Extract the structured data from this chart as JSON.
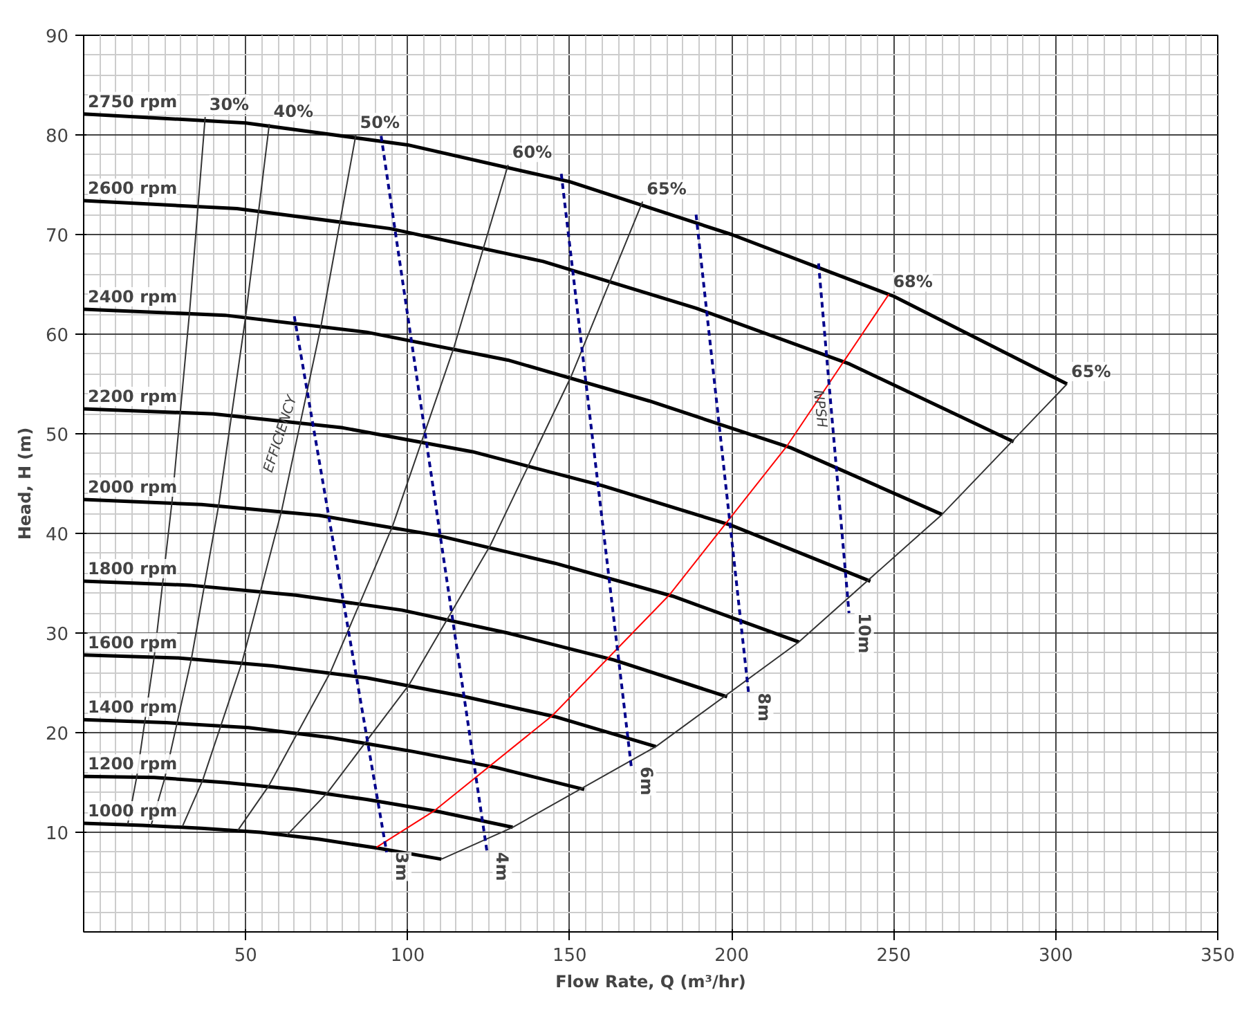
{
  "chart_data": {
    "type": "line",
    "xlabel": "Flow Rate, Q (m³/hr)",
    "ylabel": "Head, H (m)",
    "xlim": [
      0,
      350
    ],
    "ylim": [
      0,
      90
    ],
    "xticks": [
      50,
      100,
      150,
      200,
      250,
      300,
      350
    ],
    "yticks": [
      10,
      20,
      30,
      40,
      50,
      60,
      70,
      80,
      90
    ],
    "grid": true,
    "line_style": "solid",
    "series": [
      {
        "name": "2750 rpm",
        "color": "#000000",
        "x": [
          0,
          50,
          100,
          150,
          200,
          250,
          303.5
        ],
        "values": [
          82.1,
          81.2,
          79.0,
          75.3,
          70.0,
          63.8,
          55.0
        ]
      },
      {
        "name": "2600 rpm",
        "color": "#000000",
        "x": [
          0,
          47.3,
          94.5,
          141.8,
          189.1,
          236.4,
          287.0
        ],
        "values": [
          73.4,
          72.6,
          70.6,
          67.3,
          62.6,
          57.0,
          49.2
        ]
      },
      {
        "name": "2400 rpm",
        "color": "#000000",
        "x": [
          0,
          43.6,
          87.3,
          130.9,
          174.5,
          218.2,
          264.9
        ],
        "values": [
          62.5,
          61.9,
          60.2,
          57.4,
          53.3,
          48.6,
          41.9
        ]
      },
      {
        "name": "2200 rpm",
        "color": "#000000",
        "x": [
          0,
          40,
          80,
          120,
          160,
          200,
          242.8
        ],
        "values": [
          52.5,
          52.0,
          50.6,
          48.2,
          44.8,
          40.8,
          35.2
        ]
      },
      {
        "name": "2000 rpm",
        "color": "#000000",
        "x": [
          0,
          36.4,
          72.7,
          109.1,
          145.5,
          181.8,
          220.7
        ],
        "values": [
          43.4,
          42.9,
          41.8,
          39.8,
          37.0,
          33.7,
          29.1
        ]
      },
      {
        "name": "1800 rpm",
        "color": "#000000",
        "x": [
          0,
          32.7,
          65.5,
          98.2,
          130.9,
          163.6,
          198.6
        ],
        "values": [
          35.2,
          34.8,
          33.8,
          32.3,
          30.0,
          27.3,
          23.6
        ]
      },
      {
        "name": "1600 rpm",
        "color": "#000000",
        "x": [
          0,
          29.1,
          58.2,
          87.3,
          116.4,
          145.5,
          176.6
        ],
        "values": [
          27.8,
          27.5,
          26.7,
          25.5,
          23.7,
          21.6,
          18.6
        ]
      },
      {
        "name": "1400 rpm",
        "color": "#000000",
        "x": [
          0,
          25.5,
          50.9,
          76.4,
          101.8,
          127.3,
          154.5
        ],
        "values": [
          21.3,
          21.0,
          20.5,
          19.5,
          18.1,
          16.5,
          14.3
        ]
      },
      {
        "name": "1200 rpm",
        "color": "#000000",
        "x": [
          0,
          21.8,
          43.6,
          65.5,
          87.3,
          109.1,
          132.4
        ],
        "values": [
          15.6,
          15.5,
          15.0,
          14.3,
          13.3,
          12.1,
          10.5
        ]
      },
      {
        "name": "1000 rpm",
        "color": "#000000",
        "x": [
          0,
          18.2,
          36.4,
          54.5,
          72.7,
          90.9,
          110.4
        ],
        "values": [
          10.9,
          10.7,
          10.4,
          10.0,
          9.3,
          8.4,
          7.3
        ]
      },
      {
        "name": "30%",
        "color": "#333333",
        "x": [
          37.5,
          32.7,
          27.3,
          21.8,
          16.4,
          13.6
        ],
        "values": [
          81.8,
          62.3,
          43.3,
          27.7,
          15.6,
          10.8
        ]
      },
      {
        "name": "40%",
        "color": "#333333",
        "x": [
          57.3,
          50.0,
          41.7,
          33.3,
          25.0,
          20.8
        ],
        "values": [
          81.1,
          61.8,
          42.9,
          27.5,
          15.4,
          10.7
        ]
      },
      {
        "name": "50%",
        "color": "#333333",
        "x": [
          84,
          73.3,
          61.1,
          48.9,
          36.7,
          30.5
        ],
        "values": [
          80,
          60.9,
          42.3,
          27.1,
          15.2,
          10.6
        ]
      },
      {
        "name": "60%",
        "color": "#333333",
        "x": [
          131,
          114.3,
          95.3,
          76.2,
          57.2,
          47.6
        ],
        "values": [
          77,
          58.7,
          40.7,
          26.1,
          14.7,
          10.2
        ]
      },
      {
        "name": "65%",
        "color": "#333333",
        "x": [
          172.5,
          150.5,
          125.5,
          100.4,
          75.3,
          62.7
        ],
        "values": [
          73.3,
          55.8,
          38.8,
          24.8,
          14.0,
          9.7
        ]
      },
      {
        "name": "68%",
        "color": "#ff0000",
        "x": [
          248.5,
          216.9,
          180.7,
          144.6,
          108.4,
          90.4
        ],
        "values": [
          64,
          48.7,
          33.8,
          21.7,
          12.2,
          8.5
        ]
      },
      {
        "name": "65%",
        "color": "#333333",
        "x": [
          303.5,
          264.9,
          220.7,
          176.6,
          132.4,
          110.4
        ],
        "values": [
          55,
          41.9,
          29.1,
          18.6,
          10.5,
          7.3
        ]
      },
      {
        "name": "3m",
        "color": "#00008b",
        "line_style": "dashed",
        "x": [
          65,
          93.5
        ],
        "values": [
          61.8,
          8.0
        ]
      },
      {
        "name": "4m",
        "color": "#00008b",
        "line_style": "dashed",
        "x": [
          91.8,
          124.5
        ],
        "values": [
          79.9,
          8.0
        ]
      },
      {
        "name": "6m",
        "color": "#00008b",
        "line_style": "dashed",
        "x": [
          147.4,
          169
        ],
        "values": [
          76.1,
          16.6
        ]
      },
      {
        "name": "8m",
        "color": "#00008b",
        "line_style": "dashed",
        "x": [
          189,
          205.2
        ],
        "values": [
          72,
          24
        ]
      },
      {
        "name": "10m",
        "color": "#00008b",
        "line_style": "dashed",
        "x": [
          226.8,
          236.2
        ],
        "values": [
          67.1,
          32
        ]
      }
    ],
    "annotations": [
      "EFFICIENCY",
      {
        "text": "NPSH",
        "x": 227,
        "y": 52.5
      }
    ]
  }
}
